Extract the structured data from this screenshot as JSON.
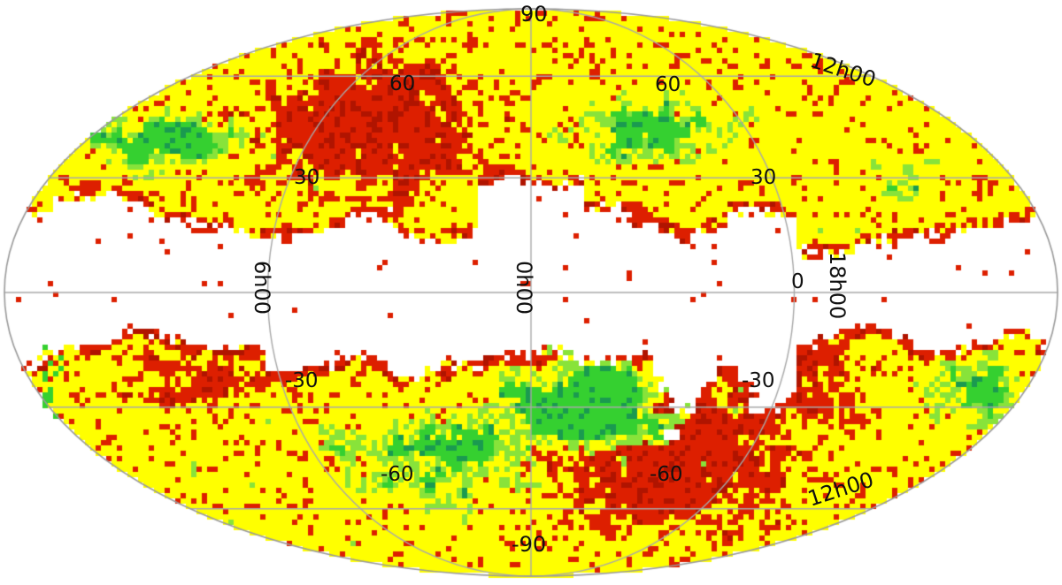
{
  "map": {
    "projection": "mollweide",
    "colors": {
      "background": "#ffffff",
      "outline": "#9a9a9a",
      "gridline": "#a8a8a8",
      "yellow": "#ffff00",
      "red": "#dd1f00",
      "dark_red": "#b01400",
      "green": "#35d030",
      "light_green": "#88e33a",
      "dark_green": "#1a9a50"
    },
    "latitude_labels": {
      "top_pole": "90",
      "bottom_pole": "-90",
      "north60_left": "60",
      "north60_right": "60",
      "north30_left": "30",
      "north30_right": "30",
      "equator_right": "0",
      "south30_left": "-30",
      "south30_right": "-30",
      "south60_left": "-60",
      "south60_right": "-60"
    },
    "longitude_labels": {
      "left": "6h00",
      "center": "0h00",
      "right": "18h00",
      "top_right": "12h00",
      "bottom_right": "12h00"
    }
  }
}
